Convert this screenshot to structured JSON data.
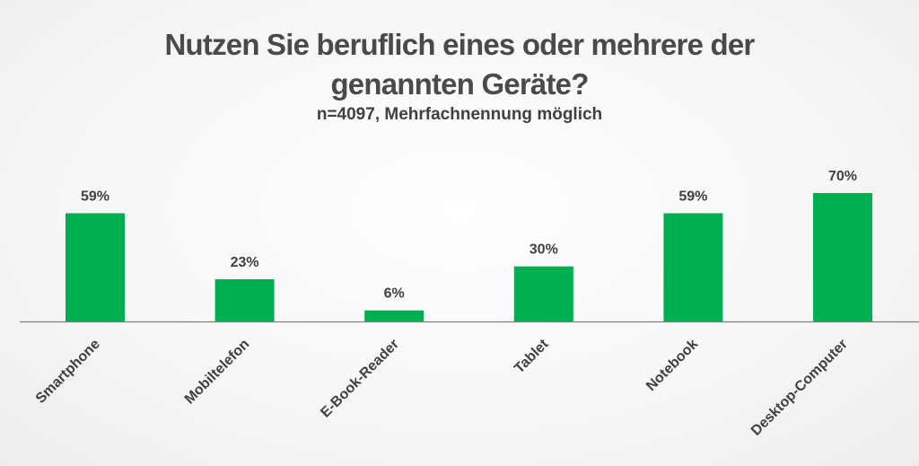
{
  "title": {
    "line1": "Nutzen Sie beruflich eines oder mehrere der",
    "line2": "genannten Geräte?"
  },
  "subtitle": "n=4097, Mehrfachnennung möglich",
  "colors": {
    "bar": "#00b050",
    "text": "#404040"
  },
  "chart_data": {
    "type": "bar",
    "categories": [
      "Smartphone",
      "Mobiltelefon",
      "E-Book-Reader",
      "Tablet",
      "Notebook",
      "Desktop-Computer"
    ],
    "values": [
      59,
      23,
      6,
      30,
      59,
      70
    ],
    "value_labels": [
      "59%",
      "23%",
      "6%",
      "30%",
      "59%",
      "70%"
    ],
    "unit": "%",
    "ylim": [
      0,
      70
    ],
    "grid": false,
    "legend": "none"
  }
}
